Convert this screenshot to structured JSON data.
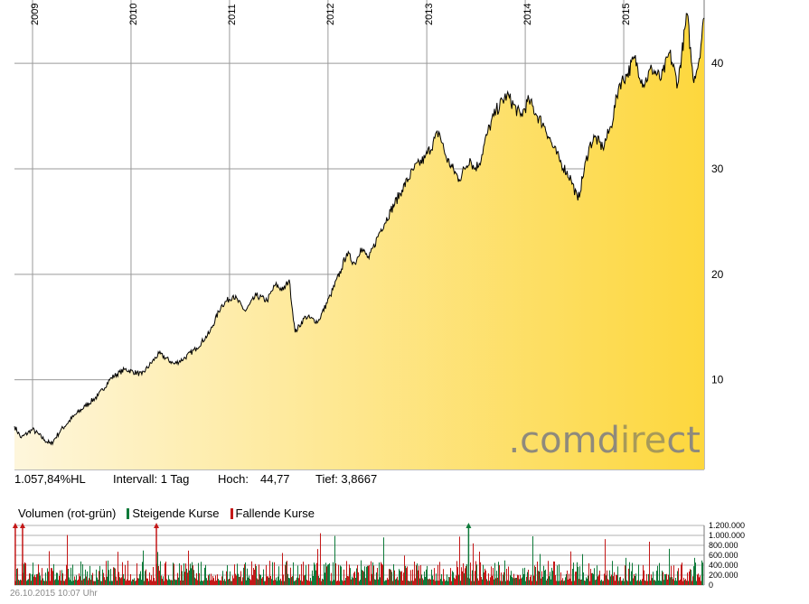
{
  "chart_data": [
    {
      "type": "area",
      "x_axis_type": "date",
      "x_range": [
        "2008-10-26",
        "2015-10-26"
      ],
      "ylim": [
        1.5,
        46
      ],
      "y_ticks": [
        10,
        20,
        30,
        40
      ],
      "y_tick_labels": [
        "10",
        "20",
        "30",
        "40"
      ],
      "x_tick_dates": [
        "2009-01-01",
        "2010-01-01",
        "2011-01-01",
        "2012-01-01",
        "2013-01-01",
        "2014-01-01",
        "2015-01-01"
      ],
      "x_tick_labels": [
        "2009",
        "2010",
        "2011",
        "2012",
        "2013",
        "2014",
        "2015"
      ],
      "grid": true,
      "fill_gradient": [
        "#fef6dc",
        "#fdd73d"
      ],
      "line_color": "#000000",
      "x": [
        "2008-10-26",
        "2008-11-20",
        "2009-01-01",
        "2009-02-15",
        "2009-03-10",
        "2009-04-15",
        "2009-06-01",
        "2009-07-15",
        "2009-09-01",
        "2009-10-20",
        "2009-12-10",
        "2010-02-10",
        "2010-04-15",
        "2010-06-10",
        "2010-07-15",
        "2010-09-01",
        "2010-10-20",
        "2010-12-01",
        "2011-01-15",
        "2011-03-01",
        "2011-04-10",
        "2011-05-20",
        "2011-06-20",
        "2011-07-20",
        "2011-08-10",
        "2011-09-01",
        "2011-10-10",
        "2011-11-25",
        "2012-01-10",
        "2012-02-20",
        "2012-03-10",
        "2012-04-10",
        "2012-05-01",
        "2012-06-01",
        "2012-07-10",
        "2012-08-20",
        "2012-10-01",
        "2012-11-15",
        "2012-12-25",
        "2013-02-15",
        "2013-03-15",
        "2013-05-01",
        "2013-06-10",
        "2013-06-25",
        "2013-07-15",
        "2013-08-15",
        "2013-09-15",
        "2013-10-25",
        "2013-12-15",
        "2014-01-15",
        "2014-02-15",
        "2014-03-15",
        "2014-04-15",
        "2014-05-15",
        "2014-06-20",
        "2014-07-15",
        "2014-08-25",
        "2014-09-15",
        "2014-10-15",
        "2014-11-15",
        "2014-12-15",
        "2015-01-15",
        "2015-02-10",
        "2015-03-15",
        "2015-04-15",
        "2015-05-20",
        "2015-06-20",
        "2015-07-20",
        "2015-08-24",
        "2015-09-15",
        "2015-10-05",
        "2015-10-26"
      ],
      "values": [
        5.6,
        4.5,
        5.3,
        4.3,
        3.9,
        5.2,
        6.5,
        7.5,
        8.5,
        10.2,
        11.0,
        10.5,
        12.5,
        11.5,
        12.0,
        13.0,
        14.5,
        17.0,
        18.0,
        16.5,
        18.0,
        17.5,
        19.0,
        18.5,
        19.5,
        14.5,
        16.0,
        15.5,
        18.0,
        20.5,
        22.0,
        21.0,
        22.5,
        21.5,
        24.0,
        26.0,
        28.0,
        30.0,
        31.0,
        33.5,
        31.0,
        29.0,
        31.0,
        30.0,
        30.5,
        33.5,
        35.5,
        37.0,
        35.0,
        36.5,
        35.0,
        34.0,
        32.0,
        30.5,
        29.0,
        27.0,
        32.0,
        33.0,
        32.0,
        34.0,
        38.0,
        39.0,
        40.5,
        38.0,
        39.5,
        38.5,
        41.0,
        38.0,
        44.7,
        38.5,
        40.0,
        44.3
      ]
    },
    {
      "type": "bar",
      "ylim": [
        0,
        1200000
      ],
      "y_ticks": [
        0,
        200000,
        400000,
        600000,
        800000,
        1000000,
        1200000
      ],
      "y_tick_labels": [
        "0",
        "200.000",
        "400.000",
        "600.000",
        "800.000",
        "1.000.000",
        "1.200.000"
      ],
      "legend": [
        "Volumen (rot-grün)",
        "Steigende Kurse",
        "Fallende Kurse"
      ],
      "series_colors": {
        "rising": "#0e7a3a",
        "falling": "#c41818"
      },
      "clipped_markers": [
        {
          "date": "2008-10-29",
          "color": "#c41818"
        },
        {
          "date": "2008-11-25",
          "color": "#c41818"
        },
        {
          "date": "2010-04-05",
          "color": "#c41818"
        },
        {
          "date": "2013-06-05",
          "color": "#0e7a3a"
        }
      ]
    }
  ],
  "stats": {
    "performance": "1.057,84%HL",
    "interval": "Intervall: 1 Tag",
    "high_label": "Hoch:",
    "high_value": "44,77",
    "low": "Tief: 3,8667"
  },
  "volume_legend": {
    "title": "Volumen (rot-grün)",
    "rising": "Steigende Kurse",
    "falling": "Fallende Kurse"
  },
  "watermark": ".comdirect",
  "timestamp": "26.10.2015 10:07 Uhr"
}
